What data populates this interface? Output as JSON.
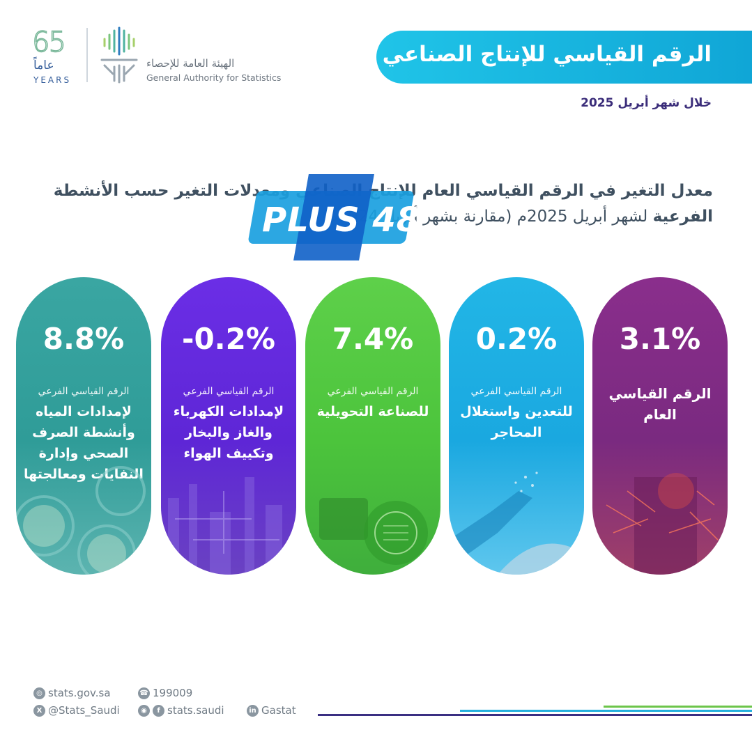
{
  "header": {
    "title": "الرقم القياسي للإنتاج الصناعي",
    "period": "خلال شهر أبريل 2025"
  },
  "logos": {
    "anniversary_number": "65",
    "anniversary_ar": "عاماً",
    "anniversary_en": "YEARS",
    "authority_ar": "الهيئة العامة للإحصاء",
    "authority_en": "General Authority for Statistics"
  },
  "subtitle": {
    "bold_part": "معدل التغير في الرقم القياسي العام للإنتاج الصناعي ومعدلات التغير حسب الأنشطة الفرعية",
    "regular_part": "لشهر أبريل 2025م (مقارنة بشهر أبريل 2024م)"
  },
  "watermark": {
    "text": "PLUS 48"
  },
  "cards": [
    {
      "value": "3.1%",
      "label_small": "",
      "label_main": "الرقم القياسي العام",
      "color": "#8a2e8c"
    },
    {
      "value": "0.2%",
      "label_small": "الرقم القياسي الفرعي",
      "label_main": "للتعدين واستغلال المحاجر",
      "color": "#22b6e6"
    },
    {
      "value": "7.4%",
      "label_small": "الرقم القياسي الفرعي",
      "label_main": "للصناعة التحويلية",
      "color": "#5ed04a"
    },
    {
      "value": "-0.2%",
      "label_small": "الرقم القياسي الفرعي",
      "label_main": "لإمدادات الكهرباء والغاز والبخار وتكييف الهواء",
      "color": "#6b2ee6"
    },
    {
      "value": "8.8%",
      "label_small": "الرقم القياسي الفرعي",
      "label_main": "لإمدادات المياه وأنشطة الصرف الصحي وإدارة النفايات ومعالجتها",
      "color": "#3aa6a2"
    }
  ],
  "footer": {
    "website": "stats.gov.sa",
    "phone": "199009",
    "twitter": "@Stats_Saudi",
    "social": "stats.saudi",
    "linkedin": "Gastat"
  },
  "icons": [
    "globe-icon",
    "phone-icon",
    "x-icon",
    "instagram-icon",
    "facebook-icon",
    "linkedin-icon"
  ]
}
